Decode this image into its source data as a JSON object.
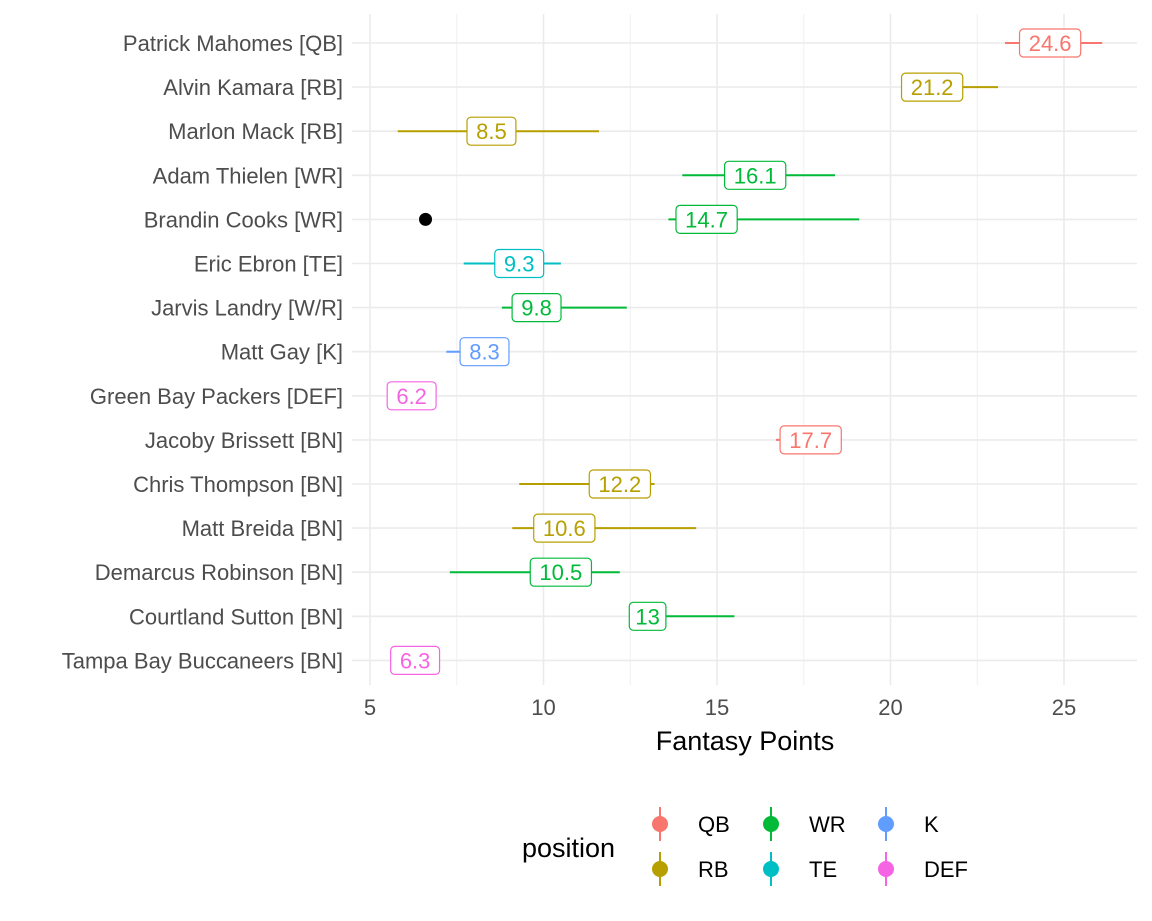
{
  "chart_data": {
    "type": "point-range",
    "xlabel": "Fantasy Points",
    "x_ticks": [
      5,
      10,
      15,
      20,
      25
    ],
    "xlim": [
      5,
      27.2
    ],
    "grid": true,
    "legend": {
      "title": "position",
      "placement": "bottom",
      "items": [
        {
          "name": "QB",
          "color": "#F8766D"
        },
        {
          "name": "RB",
          "color": "#B79F00"
        },
        {
          "name": "WR",
          "color": "#00BA38"
        },
        {
          "name": "TE",
          "color": "#00BFC4"
        },
        {
          "name": "K",
          "color": "#619CFF"
        },
        {
          "name": "DEF",
          "color": "#F564E3"
        }
      ]
    },
    "players": [
      {
        "name": "Patrick Mahomes [QB]",
        "position": "QB",
        "value": 24.6,
        "label": "24.6",
        "low": 23.3,
        "high": 26.1
      },
      {
        "name": "Alvin Kamara [RB]",
        "position": "RB",
        "value": 21.2,
        "label": "21.2",
        "low": 20.4,
        "high": 23.1
      },
      {
        "name": "Marlon Mack [RB]",
        "position": "RB",
        "value": 8.5,
        "label": "8.5",
        "low": 5.8,
        "high": 11.6
      },
      {
        "name": "Adam Thielen [WR]",
        "position": "WR",
        "value": 16.1,
        "label": "16.1",
        "low": 14.0,
        "high": 18.4
      },
      {
        "name": "Brandin Cooks [WR]",
        "position": "WR",
        "value": 14.7,
        "label": "14.7",
        "low": 13.6,
        "high": 19.1,
        "actual": 6.6
      },
      {
        "name": "Eric Ebron [TE]",
        "position": "TE",
        "value": 9.3,
        "label": "9.3",
        "low": 7.7,
        "high": 10.5
      },
      {
        "name": "Jarvis Landry [W/R]",
        "position": "WR",
        "value": 9.8,
        "label": "9.8",
        "low": 8.8,
        "high": 12.4
      },
      {
        "name": "Matt Gay [K]",
        "position": "K",
        "value": 8.3,
        "label": "8.3",
        "low": 7.2,
        "high": 8.6
      },
      {
        "name": "Green Bay Packers [DEF]",
        "position": "DEF",
        "value": 6.2,
        "label": "6.2",
        "low": 6.2,
        "high": 6.2
      },
      {
        "name": "Jacoby Brissett [BN]",
        "position": "QB",
        "value": 17.7,
        "label": "17.7",
        "low": 16.7,
        "high": 18.6
      },
      {
        "name": "Chris Thompson [BN]",
        "position": "RB",
        "value": 12.2,
        "label": "12.2",
        "low": 9.3,
        "high": 13.2
      },
      {
        "name": "Matt Breida [BN]",
        "position": "RB",
        "value": 10.6,
        "label": "10.6",
        "low": 9.1,
        "high": 14.4
      },
      {
        "name": "Demarcus Robinson [BN]",
        "position": "WR",
        "value": 10.5,
        "label": "10.5",
        "low": 7.3,
        "high": 12.2
      },
      {
        "name": "Courtland Sutton [BN]",
        "position": "WR",
        "value": 13.0,
        "label": "13",
        "low": 12.6,
        "high": 15.5
      },
      {
        "name": "Tampa Bay Buccaneers [BN]",
        "position": "DEF",
        "value": 6.3,
        "label": "6.3",
        "low": 6.3,
        "high": 6.3
      }
    ]
  }
}
